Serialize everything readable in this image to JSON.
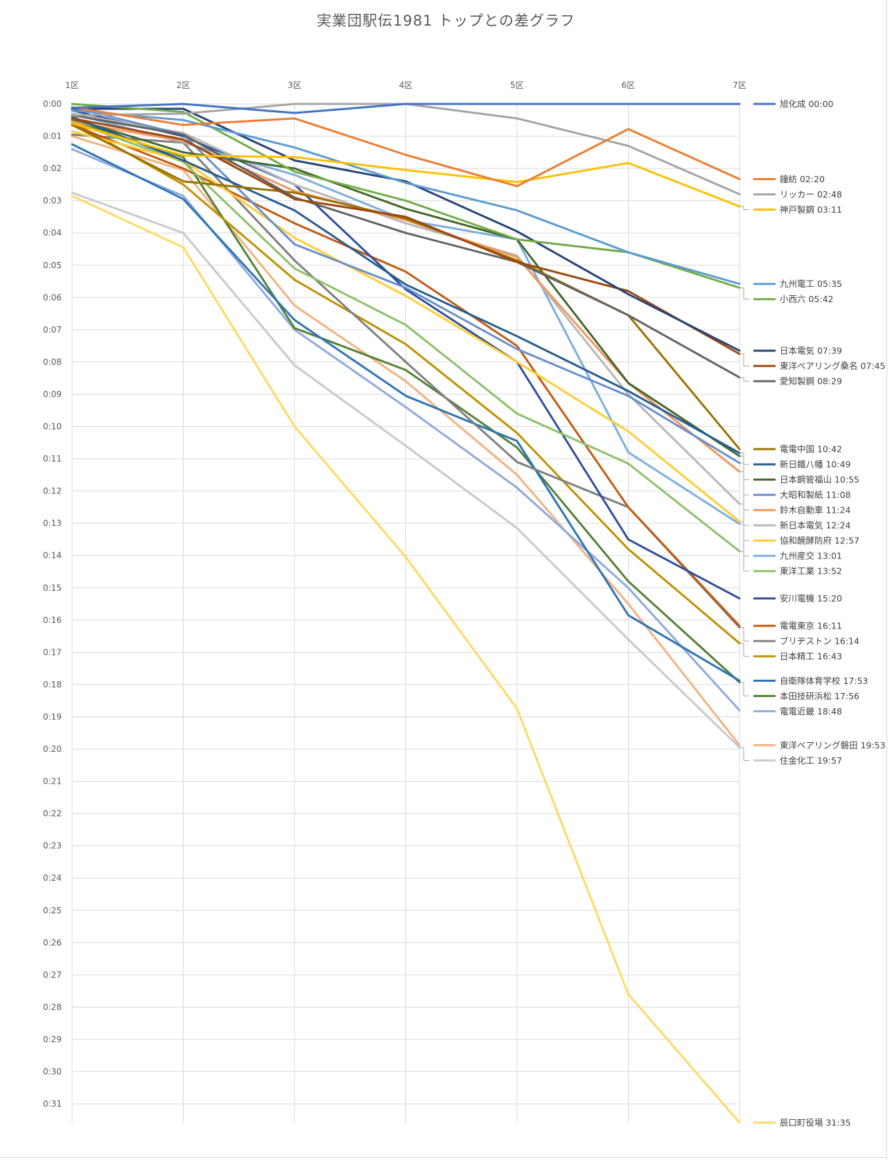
{
  "chart_data": {
    "type": "line",
    "title": "実業団駅伝1981 トップとの差グラフ",
    "xlabel": "",
    "ylabel": "",
    "categories": [
      "1区",
      "2区",
      "3区",
      "4区",
      "5区",
      "6区",
      "7区"
    ],
    "yticks": [
      "0:00",
      "0:01",
      "0:02",
      "0:03",
      "0:04",
      "0:05",
      "0:06",
      "0:07",
      "0:08",
      "0:09",
      "0:10",
      "0:11",
      "0:12",
      "0:13",
      "0:14",
      "0:15",
      "0:16",
      "0:17",
      "0:18",
      "0:19",
      "0:20",
      "0:21",
      "0:22",
      "0:23",
      "0:24",
      "0:25",
      "0:26",
      "0:27",
      "0:28",
      "0:29",
      "0:30",
      "0:31"
    ],
    "ylim_minutes": [
      0,
      31.6
    ],
    "y_inverted": true,
    "grid": true,
    "legend_position": "right, at series end points",
    "series": [
      {
        "name": "旭化成",
        "label": "00:00",
        "color": "#4472C4",
        "values": [
          0.12,
          0.0,
          0.28,
          0.0,
          0.0,
          0.0,
          0.0
        ]
      },
      {
        "name": "鐘紡",
        "label": "02:20",
        "color": "#ED7D31",
        "values": [
          0.1,
          0.65,
          0.45,
          1.58,
          2.55,
          0.78,
          2.33
        ]
      },
      {
        "name": "リッカー",
        "label": "02:48",
        "color": "#A5A5A5",
        "values": [
          0.35,
          0.3,
          0.0,
          0.0,
          0.45,
          1.3,
          2.8
        ]
      },
      {
        "name": "神戸製鋼",
        "label": "03:11",
        "color": "#FFC000",
        "values": [
          0.6,
          1.6,
          1.65,
          2.05,
          2.42,
          1.83,
          3.18
        ]
      },
      {
        "name": "九州電工",
        "label": "05:35",
        "color": "#5B9BD5",
        "values": [
          0.2,
          0.5,
          1.35,
          2.45,
          3.3,
          4.6,
          5.58
        ]
      },
      {
        "name": "小西六",
        "label": "05:42",
        "color": "#70AD47",
        "values": [
          0.0,
          0.25,
          2.1,
          3.0,
          4.2,
          4.6,
          5.7
        ]
      },
      {
        "name": "日本電気",
        "label": "07:39",
        "color": "#264478",
        "values": [
          0.15,
          0.15,
          1.75,
          2.4,
          3.95,
          5.9,
          7.65
        ]
      },
      {
        "name": "東洋ベアリング桑名",
        "label": "07:45",
        "color": "#9E480E",
        "values": [
          0.45,
          1.1,
          2.95,
          3.5,
          4.9,
          5.8,
          7.75
        ]
      },
      {
        "name": "愛知製鋼",
        "label": "08:29",
        "color": "#636363",
        "values": [
          0.35,
          0.95,
          2.9,
          4.0,
          4.9,
          6.55,
          8.48
        ]
      },
      {
        "name": "電電中国",
        "label": "10:42",
        "color": "#997300",
        "values": [
          0.65,
          2.4,
          2.75,
          3.55,
          4.85,
          6.55,
          10.7
        ]
      },
      {
        "name": "新日鐵八幡",
        "label": "10:49",
        "color": "#255E91",
        "values": [
          0.4,
          1.75,
          3.3,
          5.6,
          7.2,
          8.9,
          10.82
        ]
      },
      {
        "name": "日本鋼管福山",
        "label": "10:55",
        "color": "#43682B",
        "values": [
          0.45,
          1.5,
          2.0,
          3.25,
          4.2,
          8.65,
          10.92
        ]
      },
      {
        "name": "大昭和製紙",
        "label": "11:08",
        "color": "#698ED0",
        "values": [
          0.1,
          0.95,
          4.35,
          5.7,
          7.6,
          9.05,
          11.13
        ]
      },
      {
        "name": "鈴木自動車",
        "label": "11:24",
        "color": "#F1975A",
        "values": [
          0.55,
          1.15,
          2.7,
          3.6,
          4.75,
          8.65,
          11.4
        ]
      },
      {
        "name": "新日本電気",
        "label": "12:24",
        "color": "#B7B7B7",
        "values": [
          0.3,
          0.9,
          2.5,
          3.7,
          4.7,
          9.0,
          12.4
        ]
      },
      {
        "name": "協和醗酵防府",
        "label": "12:57",
        "color": "#FFCD33",
        "values": [
          0.85,
          1.75,
          4.15,
          5.95,
          8.0,
          10.15,
          12.95
        ]
      },
      {
        "name": "九州産交",
        "label": "13:01",
        "color": "#7CAFDD",
        "values": [
          0.3,
          1.2,
          2.2,
          3.6,
          4.2,
          10.8,
          13.02
        ]
      },
      {
        "name": "東洋工業",
        "label": "13:52",
        "color": "#8CC168",
        "values": [
          0.55,
          1.8,
          5.1,
          6.85,
          9.6,
          11.15,
          13.87
        ]
      },
      {
        "name": "安川電機",
        "label": "15:20",
        "color": "#2F4F9E",
        "values": [
          0.2,
          1.0,
          2.5,
          5.75,
          8.0,
          13.5,
          15.33
        ]
      },
      {
        "name": "電電東京",
        "label": "16:11",
        "color": "#C55A11",
        "values": [
          0.65,
          2.0,
          3.7,
          5.2,
          7.5,
          12.5,
          16.18
        ]
      },
      {
        "name": "ブリヂストン",
        "label": "16:14",
        "color": "#7F7F7F",
        "values": [
          0.95,
          1.2,
          4.85,
          8.0,
          11.1,
          12.5,
          16.23
        ]
      },
      {
        "name": "日本精工",
        "label": "16:43",
        "color": "#BF9000",
        "values": [
          0.55,
          2.5,
          5.45,
          7.45,
          10.2,
          13.8,
          16.72
        ]
      },
      {
        "name": "自衛隊体育学校",
        "label": "17:53",
        "color": "#2E75B6",
        "values": [
          1.25,
          2.95,
          6.7,
          9.05,
          10.45,
          15.85,
          17.88
        ]
      },
      {
        "name": "本田技研浜松",
        "label": "17:56",
        "color": "#548235",
        "values": [
          0.5,
          1.65,
          6.95,
          8.25,
          10.65,
          14.8,
          17.93
        ]
      },
      {
        "name": "電電近畿",
        "label": "18:48",
        "color": "#8FAADC",
        "values": [
          1.4,
          2.85,
          7.0,
          9.4,
          11.9,
          15.0,
          18.8
        ]
      },
      {
        "name": "東洋ベアリング磐田",
        "label": "19:53",
        "color": "#F4B183",
        "values": [
          1.0,
          2.05,
          6.25,
          8.6,
          11.5,
          15.5,
          19.88
        ]
      },
      {
        "name": "住金化工",
        "label": "19:57",
        "color": "#C9C9C9",
        "values": [
          2.75,
          4.0,
          8.1,
          10.6,
          13.15,
          16.6,
          19.95
        ]
      },
      {
        "name": "辰口町役場",
        "label": "31:35",
        "color": "#FFD966",
        "values": [
          2.85,
          4.45,
          10.0,
          14.05,
          18.75,
          27.6,
          31.58
        ]
      }
    ]
  }
}
